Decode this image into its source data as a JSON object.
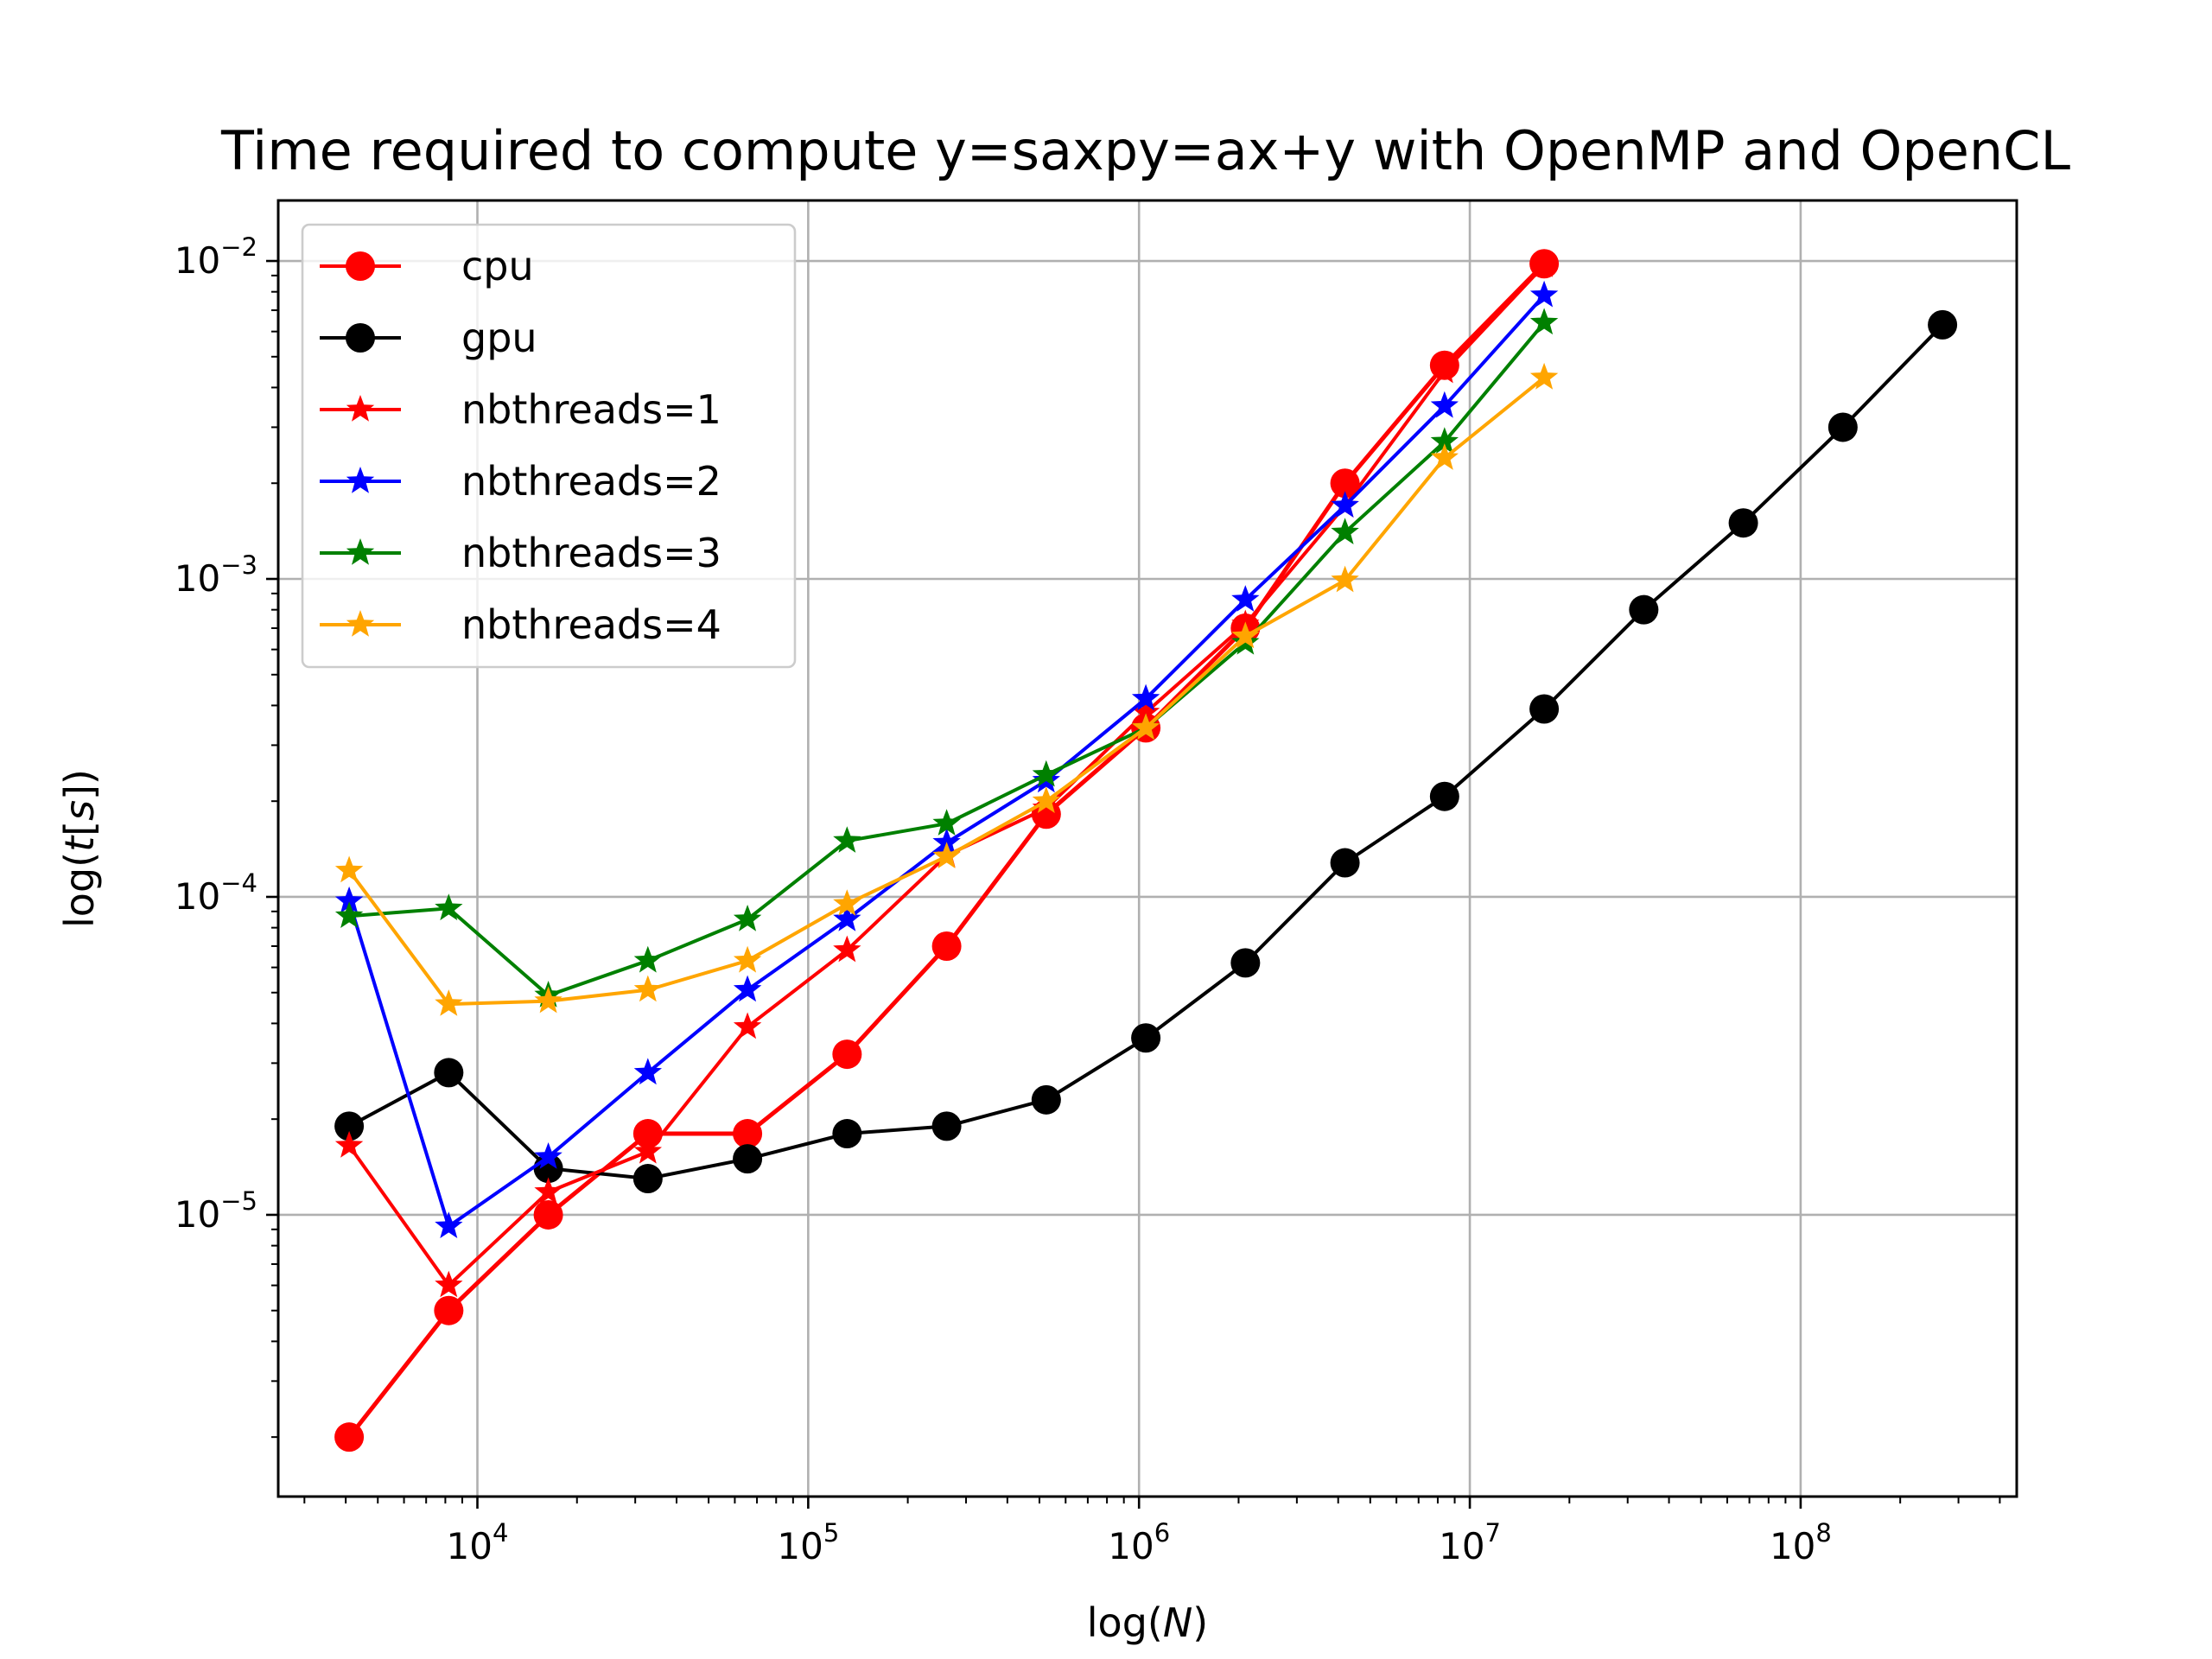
{
  "chart_data": {
    "type": "line",
    "title": "Time required to compute y=saxpy=ax+y with OpenMP and OpenCL",
    "xlabel": "log(N)",
    "ylabel": "log(t[s])",
    "xscale": "log",
    "yscale": "log",
    "xlim": [
      2500,
      450000000
    ],
    "ylim": [
      1.3e-06,
      0.0155
    ],
    "xticks": [
      {
        "base": "10",
        "exp": "4"
      },
      {
        "base": "10",
        "exp": "5"
      },
      {
        "base": "10",
        "exp": "6"
      },
      {
        "base": "10",
        "exp": "7"
      },
      {
        "base": "10",
        "exp": "8"
      }
    ],
    "yticks": [
      {
        "base": "10",
        "exp": "−5"
      },
      {
        "base": "10",
        "exp": "−4"
      },
      {
        "base": "10",
        "exp": "−3"
      },
      {
        "base": "10",
        "exp": "−2"
      }
    ],
    "grid": true,
    "legend_position": "upper-left",
    "series": [
      {
        "name": "cpu",
        "color": "#ff0000",
        "marker": "circle",
        "x": [
          4096,
          8192,
          16384,
          32768,
          65536,
          131072,
          262144,
          524288,
          1048576,
          2097152,
          4194304,
          8388608,
          16777216
        ],
        "y": [
          2e-06,
          5e-06,
          1e-05,
          1.8e-05,
          1.8e-05,
          3.2e-05,
          7e-05,
          0.000182,
          0.00034,
          0.0007,
          0.002,
          0.0047,
          0.0098
        ]
      },
      {
        "name": "gpu",
        "color": "#000000",
        "marker": "circle",
        "x": [
          4096,
          8192,
          16384,
          32768,
          65536,
          131072,
          262144,
          524288,
          1048576,
          2097152,
          4194304,
          8388608,
          16777216,
          33554432,
          67108864,
          134217728,
          268435456
        ],
        "y": [
          1.9e-05,
          2.8e-05,
          1.4e-05,
          1.3e-05,
          1.5e-05,
          1.8e-05,
          1.9e-05,
          2.3e-05,
          3.6e-05,
          6.2e-05,
          0.000128,
          0.000207,
          0.00039,
          0.0008,
          0.0015,
          0.003,
          0.0063
        ]
      },
      {
        "name": "nbthreads=1",
        "color": "#ff0000",
        "marker": "star",
        "x": [
          4096,
          8192,
          16384,
          32768,
          65536,
          131072,
          262144,
          524288,
          1048576,
          2097152,
          4194304,
          8388608,
          16777216
        ],
        "y": [
          1.65e-05,
          6e-06,
          1.18e-05,
          1.58e-05,
          3.9e-05,
          6.8e-05,
          0.000135,
          0.00019,
          0.00038,
          0.00072,
          0.0017,
          0.0045,
          0.0097
        ]
      },
      {
        "name": "nbthreads=2",
        "color": "#0000ff",
        "marker": "star",
        "x": [
          4096,
          8192,
          16384,
          32768,
          65536,
          131072,
          262144,
          524288,
          1048576,
          2097152,
          4194304,
          8388608,
          16777216
        ],
        "y": [
          9.7e-05,
          9.2e-06,
          1.52e-05,
          2.8e-05,
          5.1e-05,
          8.5e-05,
          0.000148,
          0.000232,
          0.00042,
          0.00086,
          0.0017,
          0.0035,
          0.0078
        ]
      },
      {
        "name": "nbthreads=3",
        "color": "#008000",
        "marker": "star",
        "x": [
          4096,
          8192,
          16384,
          32768,
          65536,
          131072,
          262144,
          524288,
          1048576,
          2097152,
          4194304,
          8388608,
          16777216
        ],
        "y": [
          8.7e-05,
          9.2e-05,
          4.9e-05,
          6.3e-05,
          8.5e-05,
          0.00015,
          0.00017,
          0.000242,
          0.00034,
          0.00063,
          0.0014,
          0.0027,
          0.0064
        ]
      },
      {
        "name": "nbthreads=4",
        "color": "#ffa500",
        "marker": "star",
        "x": [
          4096,
          8192,
          16384,
          32768,
          65536,
          131072,
          262144,
          524288,
          1048576,
          2097152,
          4194304,
          8388608,
          16777216
        ],
        "y": [
          0.000121,
          4.6e-05,
          4.7e-05,
          5.1e-05,
          6.3e-05,
          9.5e-05,
          0.000134,
          0.0002,
          0.00034,
          0.00066,
          0.00099,
          0.0024,
          0.0043
        ]
      }
    ]
  }
}
